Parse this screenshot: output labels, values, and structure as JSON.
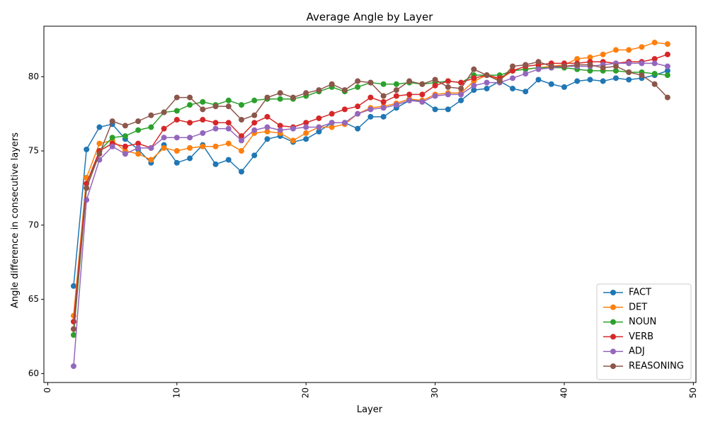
{
  "chart_data": {
    "type": "line",
    "title": "Average Angle by Layer",
    "xlabel": "Layer",
    "ylabel": "Angle difference in consecutive layers",
    "xlim": [
      -0.3,
      50.2
    ],
    "ylim": [
      59.4,
      83.4
    ],
    "xticks": [
      0,
      10,
      20,
      30,
      40,
      50
    ],
    "yticks": [
      60,
      65,
      70,
      75,
      80
    ],
    "grid": false,
    "legend_position": "lower-right",
    "x": [
      2,
      3,
      4,
      5,
      6,
      7,
      8,
      9,
      10,
      11,
      12,
      13,
      14,
      15,
      16,
      17,
      18,
      19,
      20,
      21,
      22,
      23,
      24,
      25,
      26,
      27,
      28,
      29,
      30,
      31,
      32,
      33,
      34,
      35,
      36,
      37,
      38,
      39,
      40,
      41,
      42,
      43,
      44,
      45,
      46,
      47,
      48
    ],
    "series": [
      {
        "name": "FACT",
        "color": "#1f77b4",
        "values": [
          65.9,
          75.1,
          76.6,
          76.8,
          75.8,
          75.1,
          74.2,
          75.4,
          74.2,
          74.5,
          75.4,
          74.1,
          74.4,
          73.6,
          74.7,
          75.8,
          76.0,
          75.6,
          75.8,
          76.3,
          76.9,
          76.9,
          76.5,
          77.3,
          77.3,
          77.9,
          78.4,
          78.4,
          77.8,
          77.8,
          78.4,
          79.1,
          79.2,
          79.7,
          79.2,
          79.0,
          79.8,
          79.5,
          79.3,
          79.7,
          79.8,
          79.7,
          79.9,
          79.8,
          79.9,
          80.1,
          80.4
        ]
      },
      {
        "name": "DET",
        "color": "#ff7f0e",
        "values": [
          63.9,
          73.2,
          75.5,
          75.7,
          75.0,
          74.8,
          74.4,
          75.2,
          75.0,
          75.2,
          75.3,
          75.3,
          75.5,
          75.0,
          76.2,
          76.3,
          76.2,
          75.7,
          76.2,
          76.6,
          76.6,
          76.8,
          77.5,
          77.9,
          78.0,
          78.2,
          78.5,
          78.4,
          78.8,
          78.9,
          78.9,
          79.7,
          80.1,
          79.8,
          80.4,
          80.5,
          80.6,
          80.7,
          80.8,
          81.2,
          81.3,
          81.5,
          81.8,
          81.8,
          82.0,
          82.3,
          82.2
        ]
      },
      {
        "name": "NOUN",
        "color": "#2ca02c",
        "values": [
          62.6,
          72.5,
          75.0,
          75.9,
          76.0,
          76.4,
          76.6,
          77.6,
          77.7,
          78.1,
          78.3,
          78.1,
          78.4,
          78.1,
          78.4,
          78.5,
          78.5,
          78.5,
          78.7,
          79.0,
          79.3,
          79.0,
          79.3,
          79.6,
          79.5,
          79.5,
          79.6,
          79.5,
          79.6,
          79.7,
          79.6,
          80.1,
          80.1,
          80.1,
          80.4,
          80.5,
          80.6,
          80.6,
          80.6,
          80.5,
          80.4,
          80.4,
          80.4,
          80.3,
          80.3,
          80.2,
          80.1
        ]
      },
      {
        "name": "VERB",
        "color": "#d62728",
        "values": [
          63.5,
          72.8,
          75.0,
          75.5,
          75.3,
          75.5,
          75.2,
          76.5,
          77.1,
          76.9,
          77.1,
          76.9,
          76.9,
          76.0,
          76.9,
          77.3,
          76.7,
          76.6,
          76.9,
          77.2,
          77.5,
          77.8,
          78.0,
          78.6,
          78.3,
          78.7,
          78.8,
          78.8,
          79.4,
          79.7,
          79.6,
          79.9,
          80.1,
          79.9,
          80.4,
          80.7,
          80.8,
          80.9,
          80.9,
          80.9,
          81.0,
          81.0,
          80.9,
          81.0,
          81.0,
          81.2,
          81.5
        ]
      },
      {
        "name": "ADJ",
        "color": "#9467bd",
        "values": [
          60.5,
          71.7,
          74.4,
          75.3,
          74.8,
          75.2,
          75.2,
          75.9,
          75.9,
          75.9,
          76.2,
          76.5,
          76.5,
          75.7,
          76.4,
          76.6,
          76.4,
          76.5,
          76.6,
          76.6,
          76.9,
          76.9,
          77.5,
          77.8,
          77.9,
          78.1,
          78.4,
          78.3,
          78.7,
          78.8,
          78.8,
          79.4,
          79.6,
          79.6,
          79.9,
          80.2,
          80.5,
          80.6,
          80.7,
          80.7,
          80.7,
          80.8,
          80.9,
          80.9,
          80.9,
          80.9,
          80.7
        ]
      },
      {
        "name": "REASONING",
        "color": "#8c564b",
        "values": [
          63.0,
          72.5,
          74.8,
          77.0,
          76.7,
          77.0,
          77.4,
          77.6,
          78.6,
          78.6,
          77.8,
          78.0,
          78.0,
          77.1,
          77.4,
          78.6,
          78.9,
          78.6,
          78.9,
          79.1,
          79.5,
          79.1,
          79.7,
          79.6,
          78.7,
          79.1,
          79.7,
          79.5,
          79.8,
          79.3,
          79.2,
          80.5,
          80.1,
          79.7,
          80.7,
          80.8,
          81.0,
          80.7,
          80.7,
          80.8,
          80.8,
          80.6,
          80.7,
          80.3,
          80.1,
          79.5,
          78.6
        ]
      }
    ]
  }
}
